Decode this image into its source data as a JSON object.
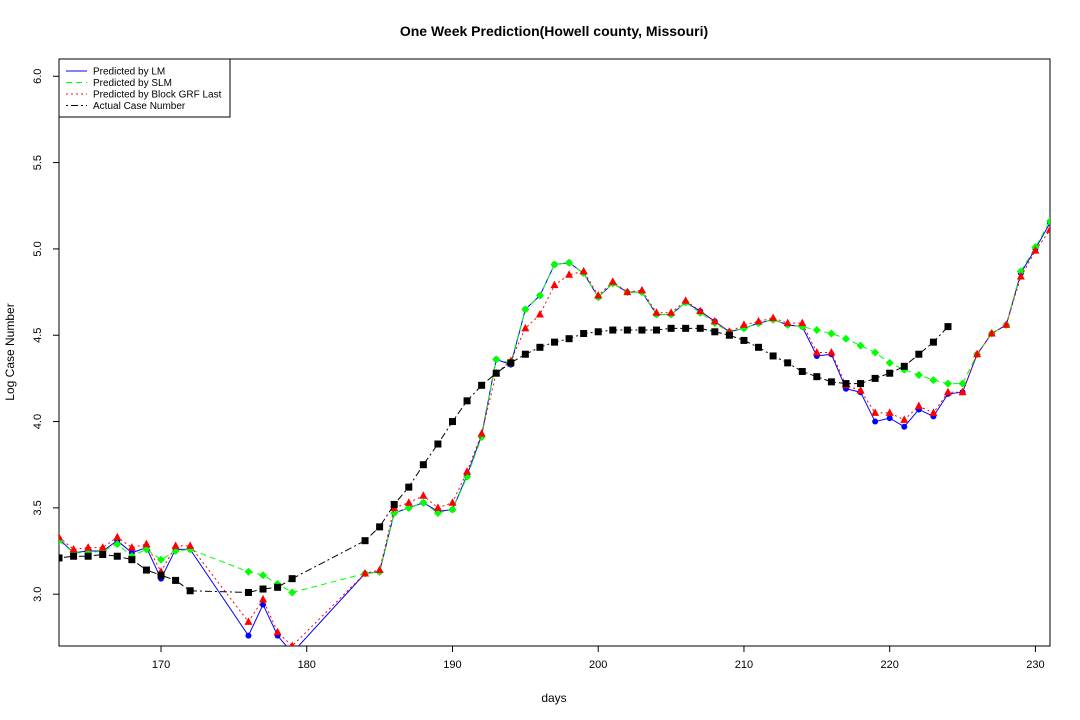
{
  "chart_data": {
    "type": "line",
    "title": "One Week Prediction(Howell county, Missouri)",
    "xlabel": "days",
    "ylabel": "Log Case Number",
    "xlim": [
      163,
      231
    ],
    "ylim": [
      2.7,
      6.1
    ],
    "xticks": [
      170,
      180,
      190,
      200,
      210,
      220,
      230
    ],
    "yticks": [
      3.0,
      3.5,
      4.0,
      4.5,
      5.0,
      5.5,
      6.0
    ],
    "ytick_labels": [
      "3.0",
      "3.5",
      "4.0",
      "4.5",
      "5.0",
      "5.5",
      "6.0"
    ],
    "grid": false,
    "legend_position": "top-left",
    "series": [
      {
        "name": "Predicted by LM",
        "color": "#0000ff",
        "line": "solid",
        "marker": "circle",
        "x": [
          163,
          164,
          165,
          166,
          167,
          168,
          169,
          170,
          171,
          172,
          176,
          177,
          178,
          179,
          184,
          185,
          186,
          187,
          188,
          189,
          190,
          191,
          192,
          193,
          194,
          195,
          196,
          197,
          198,
          199,
          200,
          201,
          202,
          203,
          204,
          205,
          206,
          207,
          208,
          209,
          210,
          211,
          212,
          213,
          214,
          215,
          216,
          217,
          218,
          219,
          220,
          221,
          222,
          223,
          224,
          225,
          226,
          227,
          228,
          229,
          230,
          231
        ],
        "values": [
          3.32,
          3.24,
          3.25,
          3.25,
          3.31,
          3.24,
          3.27,
          3.09,
          3.26,
          3.26,
          2.76,
          2.94,
          2.76,
          2.66,
          3.12,
          3.13,
          3.47,
          3.5,
          3.53,
          3.48,
          3.49,
          3.69,
          3.92,
          4.36,
          4.33,
          4.65,
          4.73,
          4.91,
          4.92,
          4.86,
          4.72,
          4.8,
          4.75,
          4.75,
          4.62,
          4.62,
          4.69,
          4.64,
          4.58,
          4.52,
          4.54,
          4.57,
          4.59,
          4.56,
          4.55,
          4.38,
          4.39,
          4.19,
          4.17,
          4.0,
          4.02,
          3.97,
          4.07,
          4.03,
          4.16,
          4.17,
          4.39,
          4.51,
          4.56,
          4.86,
          5.0,
          5.15
        ]
      },
      {
        "name": "Predicted by SLM",
        "color": "#00ff00",
        "line": "dashed",
        "marker": "diamond",
        "x": [
          163,
          164,
          165,
          166,
          167,
          168,
          169,
          170,
          171,
          172,
          176,
          177,
          178,
          179,
          184,
          185,
          186,
          187,
          188,
          189,
          190,
          191,
          192,
          193,
          194,
          195,
          196,
          197,
          198,
          199,
          200,
          201,
          202,
          203,
          204,
          205,
          206,
          207,
          208,
          209,
          210,
          211,
          212,
          213,
          214,
          215,
          216,
          217,
          218,
          219,
          220,
          221,
          222,
          223,
          224,
          225,
          226,
          227,
          228,
          229,
          230,
          231
        ],
        "values": [
          3.31,
          3.24,
          3.24,
          3.25,
          3.29,
          3.22,
          3.26,
          3.2,
          3.25,
          3.26,
          3.13,
          3.11,
          3.06,
          3.01,
          3.12,
          3.13,
          3.47,
          3.5,
          3.53,
          3.47,
          3.49,
          3.68,
          3.91,
          4.36,
          4.34,
          4.65,
          4.73,
          4.91,
          4.92,
          4.86,
          4.72,
          4.8,
          4.75,
          4.75,
          4.62,
          4.62,
          4.69,
          4.63,
          4.57,
          4.52,
          4.54,
          4.57,
          4.59,
          4.56,
          4.55,
          4.53,
          4.51,
          4.48,
          4.44,
          4.4,
          4.34,
          4.3,
          4.27,
          4.24,
          4.22,
          4.22,
          4.39,
          4.51,
          4.56,
          4.87,
          5.01,
          5.16
        ]
      },
      {
        "name": "Predicted by Block GRF Last",
        "color": "#ff0000",
        "line": "dotted",
        "marker": "triangle",
        "x": [
          163,
          164,
          165,
          166,
          167,
          168,
          169,
          170,
          171,
          172,
          176,
          177,
          178,
          179,
          184,
          185,
          186,
          187,
          188,
          189,
          190,
          191,
          192,
          193,
          194,
          195,
          196,
          197,
          198,
          199,
          200,
          201,
          202,
          203,
          204,
          205,
          206,
          207,
          208,
          209,
          210,
          211,
          212,
          213,
          214,
          215,
          216,
          217,
          218,
          219,
          220,
          221,
          222,
          223,
          224,
          225,
          226,
          227,
          228,
          229,
          230,
          231
        ],
        "values": [
          3.33,
          3.26,
          3.27,
          3.27,
          3.33,
          3.27,
          3.29,
          3.13,
          3.28,
          3.28,
          2.84,
          2.97,
          2.78,
          2.7,
          3.12,
          3.14,
          3.5,
          3.53,
          3.57,
          3.5,
          3.53,
          3.71,
          3.93,
          4.28,
          4.35,
          4.54,
          4.62,
          4.79,
          4.85,
          4.87,
          4.73,
          4.81,
          4.75,
          4.76,
          4.63,
          4.63,
          4.7,
          4.64,
          4.58,
          4.52,
          4.56,
          4.58,
          4.6,
          4.57,
          4.57,
          4.4,
          4.4,
          4.21,
          4.18,
          4.05,
          4.05,
          4.01,
          4.09,
          4.05,
          4.17,
          4.17,
          4.39,
          4.51,
          4.56,
          4.84,
          4.99,
          5.11
        ]
      },
      {
        "name": "Actual Case Number",
        "color": "#000000",
        "line": "dotdash",
        "marker": "square",
        "x": [
          163,
          164,
          165,
          166,
          167,
          168,
          169,
          170,
          171,
          172,
          176,
          177,
          178,
          179,
          184,
          185,
          186,
          187,
          188,
          189,
          190,
          191,
          192,
          193,
          194,
          195,
          196,
          197,
          198,
          199,
          200,
          201,
          202,
          203,
          204,
          205,
          206,
          207,
          208,
          209,
          210,
          211,
          212,
          213,
          214,
          215,
          216,
          217,
          218,
          219,
          220,
          221,
          222,
          223,
          224
        ],
        "values": [
          3.21,
          3.22,
          3.22,
          3.23,
          3.22,
          3.2,
          3.14,
          3.11,
          3.08,
          3.02,
          3.01,
          3.03,
          3.04,
          3.09,
          3.31,
          3.39,
          3.52,
          3.62,
          3.75,
          3.87,
          4.0,
          4.12,
          4.21,
          4.28,
          4.34,
          4.39,
          4.43,
          4.46,
          4.48,
          4.51,
          4.52,
          4.53,
          4.53,
          4.53,
          4.53,
          4.54,
          4.54,
          4.54,
          4.52,
          4.5,
          4.47,
          4.43,
          4.38,
          4.34,
          4.29,
          4.26,
          4.23,
          4.22,
          4.22,
          4.25,
          4.28,
          4.32,
          4.39,
          4.46,
          4.55
        ]
      }
    ]
  }
}
